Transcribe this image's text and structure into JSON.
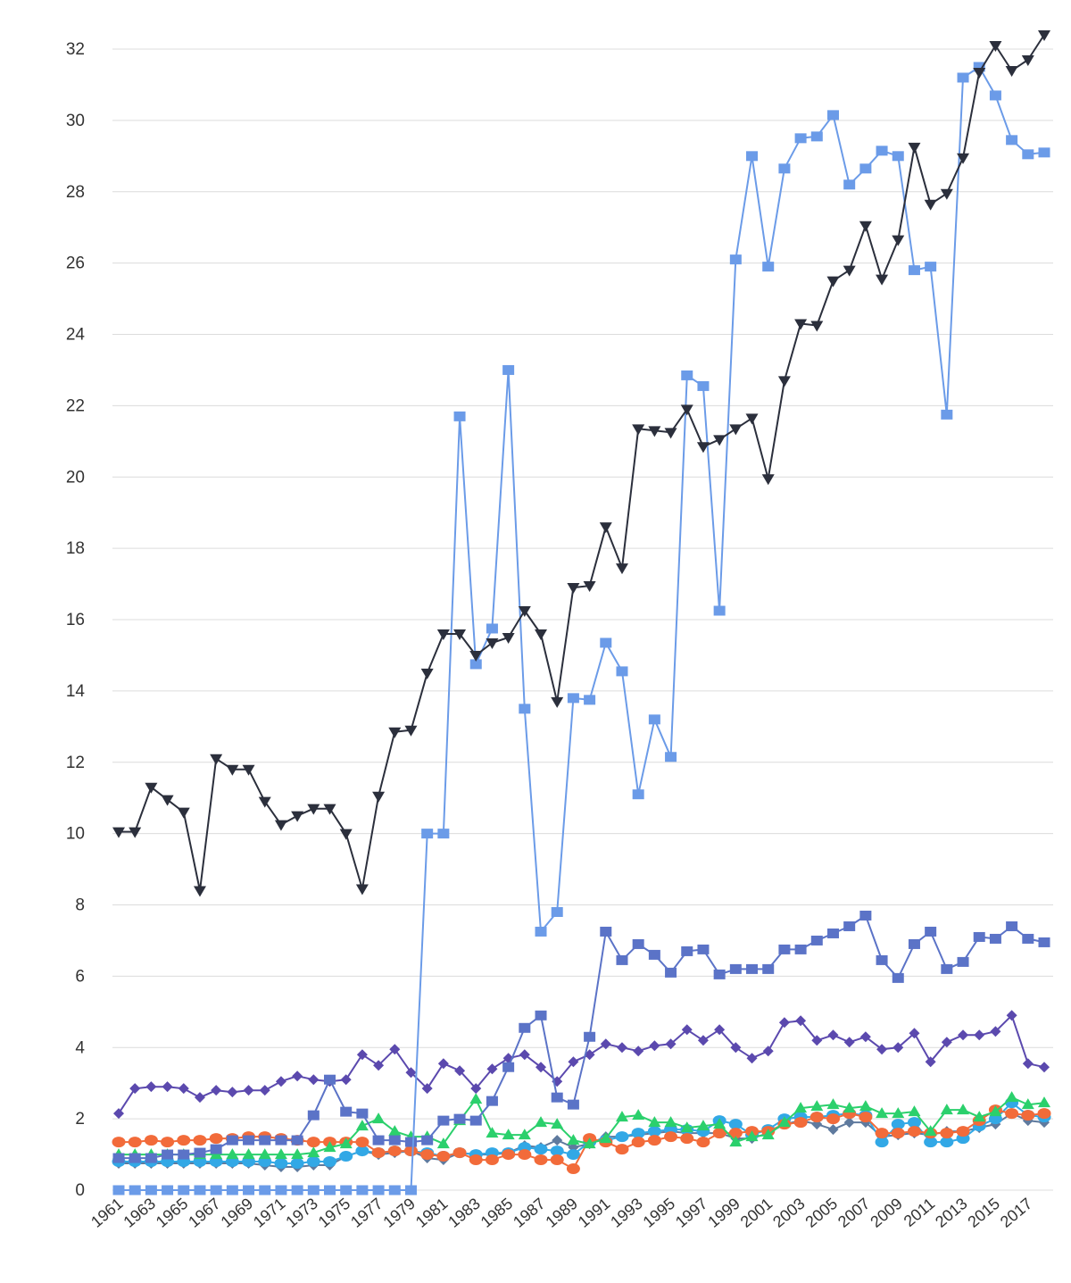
{
  "chart_data": {
    "type": "line",
    "title": "",
    "xlabel": "",
    "ylabel": "",
    "ylim": [
      0,
      32.5
    ],
    "yticks": [
      0,
      2,
      4,
      6,
      8,
      10,
      12,
      14,
      16,
      18,
      20,
      22,
      24,
      26,
      28,
      30,
      32
    ],
    "x": [
      1961,
      1962,
      1963,
      1964,
      1965,
      1966,
      1967,
      1968,
      1969,
      1970,
      1971,
      1972,
      1973,
      1974,
      1975,
      1976,
      1977,
      1978,
      1979,
      1980,
      1981,
      1982,
      1983,
      1984,
      1985,
      1986,
      1987,
      1988,
      1989,
      1990,
      1991,
      1992,
      1993,
      1994,
      1995,
      1996,
      1997,
      1998,
      1999,
      2000,
      2001,
      2002,
      2003,
      2004,
      2005,
      2006,
      2007,
      2008,
      2009,
      2010,
      2011,
      2012,
      2013,
      2014,
      2015,
      2016,
      2017,
      2018
    ],
    "xtick_labels": [
      "1961",
      "1963",
      "1965",
      "1967",
      "1969",
      "1971",
      "1973",
      "1975",
      "1977",
      "1979",
      "1981",
      "1983",
      "1985",
      "1987",
      "1989",
      "1991",
      "1993",
      "1995",
      "1997",
      "1999",
      "2001",
      "2003",
      "2005",
      "2007",
      "2009",
      "2011",
      "2013",
      "2015",
      "2017"
    ],
    "grid": "horizontal",
    "legend": "none",
    "series": [
      {
        "color": "#2b2f3c",
        "marker": "triangle-down",
        "values": [
          10.05,
          10.05,
          11.3,
          10.95,
          10.6,
          8.4,
          12.1,
          11.8,
          11.8,
          10.9,
          10.25,
          10.5,
          10.7,
          10.7,
          10.0,
          8.45,
          11.05,
          12.85,
          12.9,
          14.5,
          15.6,
          15.6,
          15.0,
          15.35,
          15.5,
          16.25,
          15.6,
          13.7,
          16.9,
          16.95,
          18.6,
          17.45,
          21.35,
          21.3,
          21.25,
          21.9,
          20.85,
          21.05,
          21.35,
          21.65,
          19.95,
          22.7,
          24.3,
          24.25,
          25.5,
          25.8,
          27.05,
          25.55,
          26.65,
          29.25,
          27.65,
          27.95,
          28.95,
          31.35,
          32.1,
          31.4,
          31.7,
          32.4
        ]
      },
      {
        "color": "#6b9be8",
        "marker": "square",
        "values": [
          0,
          0,
          0,
          0,
          0,
          0,
          0,
          0,
          0,
          0,
          0,
          0,
          0,
          0,
          0,
          0,
          0,
          0,
          0,
          10.0,
          10.0,
          21.7,
          14.75,
          15.75,
          23.0,
          13.5,
          7.25,
          7.8,
          13.8,
          13.75,
          15.35,
          14.55,
          11.1,
          13.2,
          12.15,
          22.85,
          22.55,
          16.25,
          26.1,
          29.0,
          25.9,
          28.65,
          29.5,
          29.55,
          30.15,
          28.2,
          28.65,
          29.15,
          29.0,
          25.8,
          25.9,
          21.75,
          31.2,
          31.5,
          30.7,
          29.45,
          29.05,
          29.1
        ]
      },
      {
        "color": "#5b73c7",
        "marker": "square",
        "values": [
          0.9,
          0.9,
          0.9,
          1.0,
          1.0,
          1.05,
          1.15,
          1.4,
          1.4,
          1.4,
          1.4,
          1.4,
          2.1,
          3.1,
          2.2,
          2.15,
          1.4,
          1.4,
          1.35,
          1.4,
          1.95,
          2.0,
          1.95,
          2.5,
          3.45,
          4.55,
          4.9,
          2.6,
          2.4,
          4.3,
          7.25,
          6.45,
          6.9,
          6.6,
          6.1,
          6.7,
          6.75,
          6.05,
          6.2,
          6.2,
          6.2,
          6.75,
          6.75,
          7.0,
          7.2,
          7.4,
          7.7,
          6.45,
          5.95,
          6.9,
          7.25,
          6.2,
          6.4,
          7.1,
          7.05,
          7.4,
          7.05,
          6.95
        ]
      },
      {
        "color": "#5b49ae",
        "marker": "diamond",
        "values": [
          2.15,
          2.85,
          2.9,
          2.9,
          2.85,
          2.6,
          2.8,
          2.75,
          2.8,
          2.8,
          3.05,
          3.2,
          3.1,
          3.05,
          3.1,
          3.8,
          3.5,
          3.95,
          3.3,
          2.85,
          3.55,
          3.35,
          2.85,
          3.4,
          3.7,
          3.8,
          3.45,
          3.05,
          3.6,
          3.8,
          4.1,
          4.0,
          3.9,
          4.05,
          4.1,
          4.5,
          4.2,
          4.5,
          4.0,
          3.7,
          3.9,
          4.7,
          4.75,
          4.2,
          4.35,
          4.15,
          4.3,
          3.95,
          4.0,
          4.4,
          3.6,
          4.15,
          4.35,
          4.35,
          4.45,
          4.9,
          3.55,
          3.45
        ]
      },
      {
        "color": "#2bd06c",
        "marker": "triangle-up",
        "values": [
          1.0,
          1.0,
          1.0,
          1.0,
          1.0,
          1.0,
          1.0,
          1.0,
          1.0,
          1.0,
          1.0,
          1.0,
          1.05,
          1.2,
          1.3,
          1.8,
          2.0,
          1.65,
          1.5,
          1.5,
          1.3,
          1.95,
          2.55,
          1.6,
          1.55,
          1.55,
          1.9,
          1.85,
          1.4,
          1.3,
          1.45,
          2.05,
          2.1,
          1.9,
          1.9,
          1.75,
          1.8,
          1.85,
          1.35,
          1.5,
          1.55,
          1.9,
          2.3,
          2.35,
          2.4,
          2.3,
          2.35,
          2.15,
          2.15,
          2.2,
          1.65,
          2.25,
          2.25,
          2.05,
          2.2,
          2.6,
          2.4,
          2.45
        ]
      },
      {
        "color": "#f26b3a",
        "marker": "circle",
        "values": [
          1.35,
          1.35,
          1.4,
          1.35,
          1.4,
          1.4,
          1.45,
          1.45,
          1.5,
          1.5,
          1.45,
          1.4,
          1.35,
          1.35,
          1.35,
          1.35,
          1.05,
          1.1,
          1.1,
          1.0,
          0.95,
          1.05,
          0.85,
          0.85,
          1.0,
          1.0,
          0.85,
          0.85,
          0.6,
          1.45,
          1.35,
          1.15,
          1.35,
          1.4,
          1.5,
          1.45,
          1.35,
          1.6,
          1.6,
          1.65,
          1.65,
          1.85,
          1.9,
          2.05,
          2.0,
          2.15,
          2.05,
          1.6,
          1.6,
          1.65,
          1.6,
          1.6,
          1.65,
          1.95,
          2.25,
          2.15,
          2.1,
          2.15
        ]
      },
      {
        "color": "#32a8e6",
        "marker": "circle",
        "values": [
          0.8,
          0.8,
          0.8,
          0.8,
          0.8,
          0.8,
          0.8,
          0.8,
          0.8,
          0.8,
          0.75,
          0.75,
          0.8,
          0.8,
          0.95,
          1.1,
          1.05,
          1.1,
          1.1,
          1.05,
          0.95,
          1.05,
          1.0,
          1.05,
          1.05,
          1.2,
          1.15,
          1.1,
          1.0,
          1.35,
          1.4,
          1.5,
          1.6,
          1.65,
          1.7,
          1.7,
          1.65,
          1.95,
          1.85,
          1.55,
          1.7,
          2.0,
          2.05,
          2.05,
          2.1,
          2.15,
          2.1,
          1.35,
          1.85,
          1.9,
          1.35,
          1.35,
          1.45,
          1.8,
          2.0,
          2.45,
          2.1,
          2.05
        ]
      },
      {
        "color": "#5f7a9e",
        "marker": "diamond",
        "values": [
          0.75,
          0.75,
          0.75,
          0.75,
          0.75,
          0.75,
          0.75,
          0.75,
          0.75,
          0.7,
          0.65,
          0.65,
          0.7,
          0.7,
          0.95,
          1.1,
          1.0,
          1.05,
          1.1,
          0.9,
          0.85,
          1.05,
          1.0,
          1.0,
          1.05,
          1.25,
          1.2,
          1.4,
          1.2,
          1.3,
          1.5,
          1.5,
          1.55,
          1.6,
          1.65,
          1.6,
          1.6,
          1.6,
          1.45,
          1.45,
          1.6,
          1.85,
          1.95,
          1.85,
          1.7,
          1.9,
          1.9,
          1.5,
          1.55,
          1.6,
          1.55,
          1.65,
          1.65,
          1.75,
          1.85,
          2.15,
          1.95,
          1.9
        ]
      }
    ]
  }
}
